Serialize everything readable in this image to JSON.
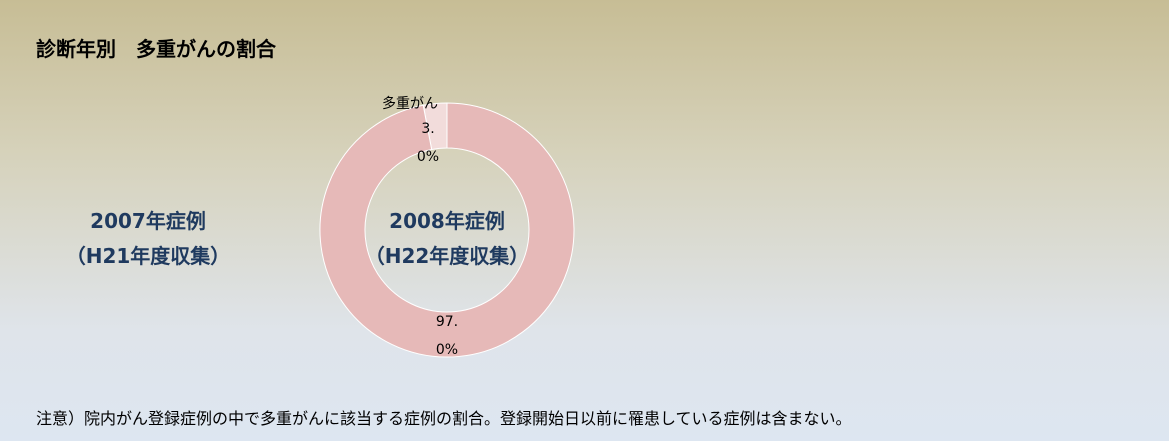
{
  "title": "診断年別　多重がんの割合",
  "side_label": [
    "2007年症例",
    "（H21年度収集）"
  ],
  "chart_data": {
    "type": "pie",
    "donut": true,
    "categories": [
      "多重がん",
      null
    ],
    "values": [
      3.0,
      97.0
    ],
    "value_labels": [
      "3.0%",
      "97.0%"
    ],
    "colors": [
      "#f2dcdb",
      "#e6b9b8"
    ],
    "center_label": [
      "2008年症例",
      "（H22年度収集）"
    ]
  },
  "note": "注意）院内がん登録症例の中で多重がんに該当する症例の割合。登録開始日以前に罹患している症例は含まない。"
}
